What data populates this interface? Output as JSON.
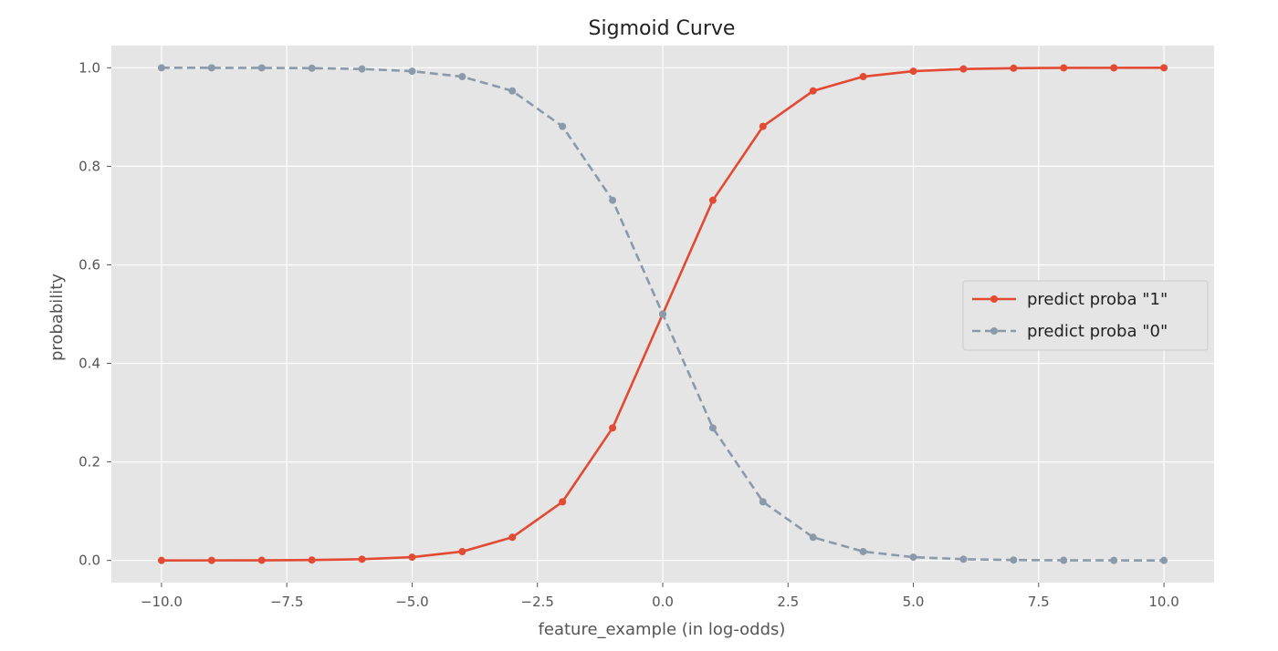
{
  "chart_data": {
    "type": "line",
    "title": "Sigmoid Curve",
    "xlabel": "feature_example (in log-odds)",
    "ylabel": "probability",
    "xlim": [
      -11,
      11
    ],
    "ylim": [
      -0.045,
      1.045
    ],
    "xticks": [
      -10,
      -7.5,
      -5,
      -2.5,
      0,
      2.5,
      5,
      7.5,
      10
    ],
    "xtick_labels": [
      "−10.0",
      "−7.5",
      "−5.0",
      "−2.5",
      "0.0",
      "2.5",
      "5.0",
      "7.5",
      "10.0"
    ],
    "yticks": [
      0,
      0.2,
      0.4,
      0.6,
      0.8,
      1.0
    ],
    "ytick_labels": [
      "0.0",
      "0.2",
      "0.4",
      "0.6",
      "0.8",
      "1.0"
    ],
    "grid": true,
    "legend_position": "center-right",
    "background": "#e5e5e5",
    "x": [
      -10,
      -9,
      -8,
      -7,
      -6,
      -5,
      -4,
      -3,
      -2,
      -1,
      0,
      1,
      2,
      3,
      4,
      5,
      6,
      7,
      8,
      9,
      10
    ],
    "series": [
      {
        "name": "predict proba \"1\"",
        "color": "#e24a33",
        "style": "solid",
        "marker": "dot",
        "values": [
          0.0,
          0.0001,
          0.0003,
          0.0009,
          0.0025,
          0.0067,
          0.018,
          0.047,
          0.119,
          0.269,
          0.5,
          0.731,
          0.881,
          0.953,
          0.982,
          0.993,
          0.9975,
          0.9991,
          0.9997,
          0.9999,
          1.0
        ]
      },
      {
        "name": "predict proba \"0\"",
        "color": "#8a9aaa",
        "style": "dashed",
        "marker": "dot",
        "values": [
          1.0,
          0.9999,
          0.9997,
          0.9991,
          0.9975,
          0.993,
          0.982,
          0.953,
          0.881,
          0.731,
          0.5,
          0.269,
          0.119,
          0.047,
          0.018,
          0.0067,
          0.0025,
          0.0009,
          0.0003,
          0.0001,
          0.0
        ]
      }
    ]
  }
}
